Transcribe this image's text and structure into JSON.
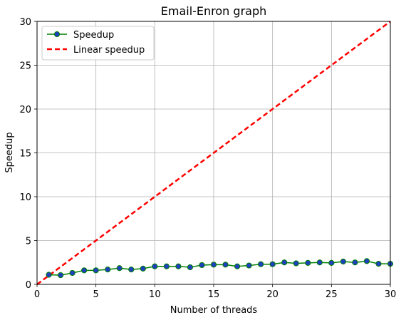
{
  "chart_data": {
    "type": "line",
    "title": "Email-Enron graph",
    "xlabel": "Number of threads",
    "ylabel": "Speedup",
    "xlim": [
      0,
      30
    ],
    "ylim": [
      0,
      30
    ],
    "xticks": [
      0,
      5,
      10,
      15,
      20,
      25,
      30
    ],
    "yticks": [
      0,
      5,
      10,
      15,
      20,
      25,
      30
    ],
    "grid": true,
    "legend_position": "upper-left",
    "series": [
      {
        "name": "Speedup",
        "style": "solid-line-with-markers",
        "color": "#008000",
        "marker_color": "#1f3fbf",
        "x": [
          1,
          2,
          3,
          4,
          5,
          6,
          7,
          8,
          9,
          10,
          11,
          12,
          13,
          14,
          15,
          16,
          17,
          18,
          19,
          20,
          21,
          22,
          23,
          24,
          25,
          26,
          27,
          28,
          29,
          30
        ],
        "y": [
          1.1,
          1.05,
          1.3,
          1.6,
          1.6,
          1.7,
          1.85,
          1.7,
          1.8,
          2.05,
          2.05,
          2.05,
          1.95,
          2.2,
          2.25,
          2.25,
          2.05,
          2.15,
          2.3,
          2.3,
          2.5,
          2.4,
          2.45,
          2.5,
          2.45,
          2.6,
          2.5,
          2.65,
          2.35,
          2.35
        ]
      },
      {
        "name": "Linear speedup",
        "style": "dashed-line",
        "color": "#ff0000",
        "x": [
          0,
          30
        ],
        "y": [
          0,
          30
        ]
      }
    ]
  }
}
